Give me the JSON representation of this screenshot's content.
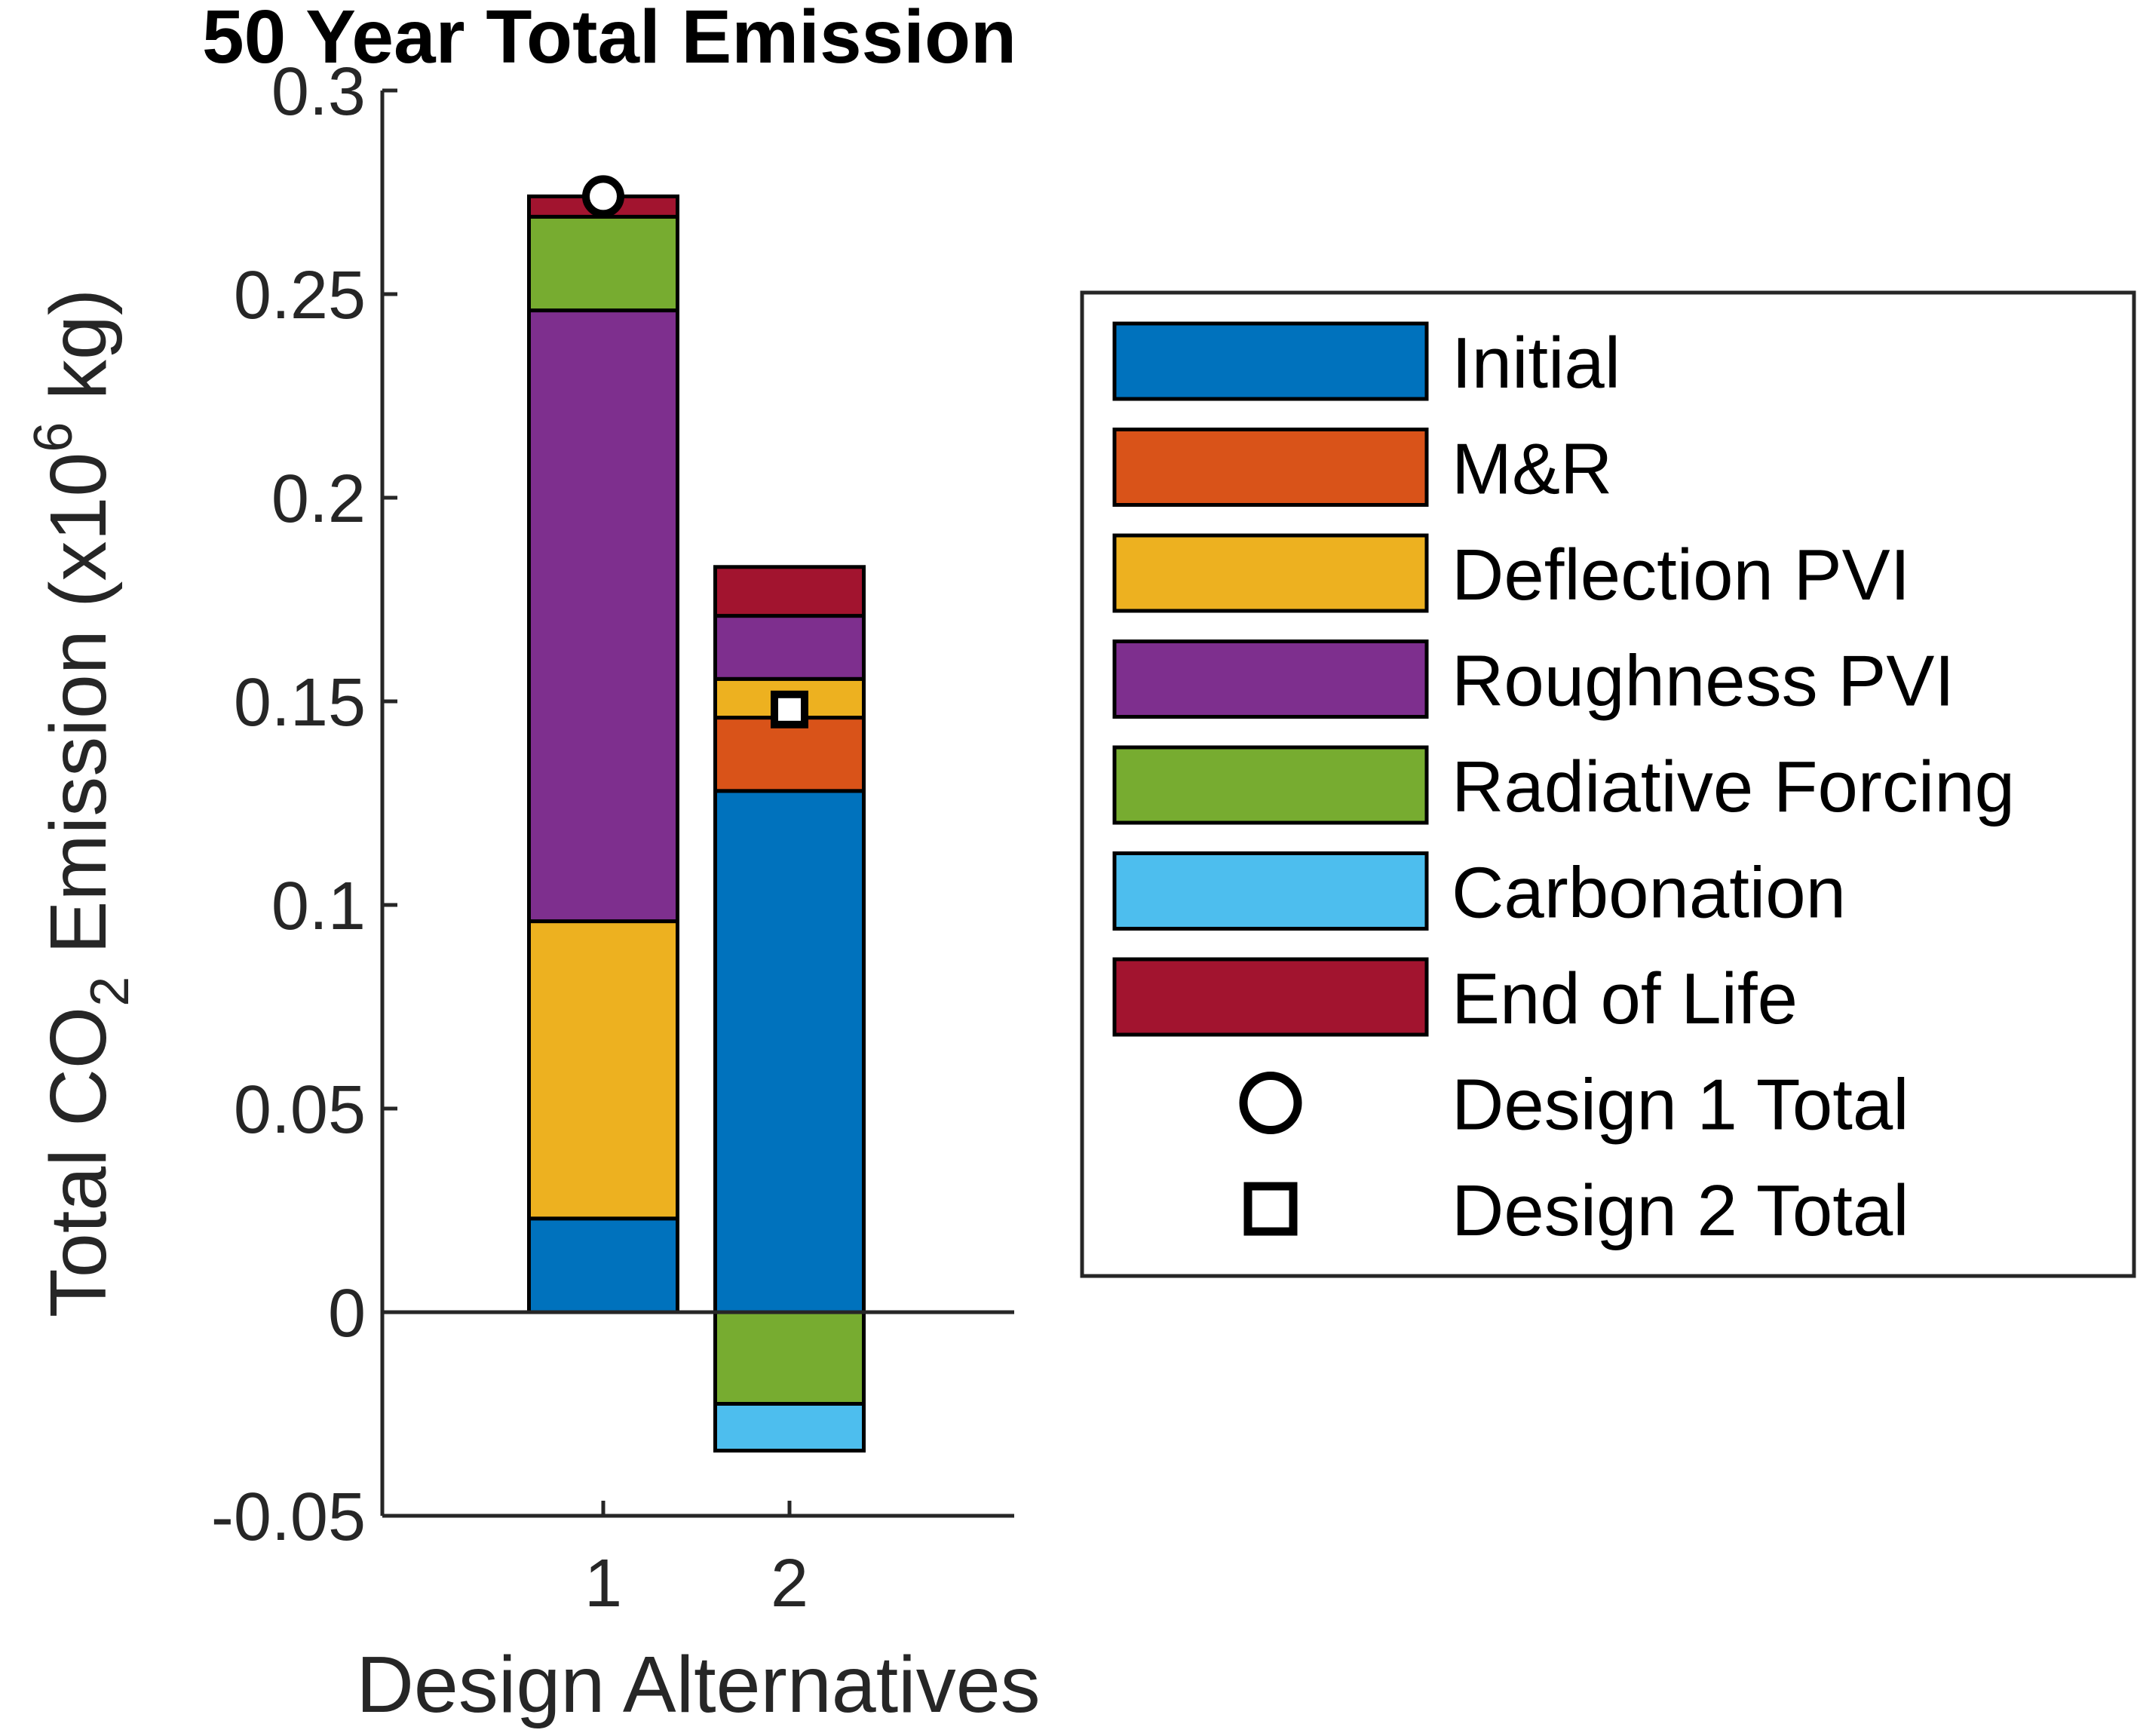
{
  "chart_data": {
    "type": "bar",
    "stacked": true,
    "title": "50 Year Total Emission",
    "xlabel": "Design Alternatives",
    "ylabel_parts": [
      "Total CO",
      "2",
      " Emission (x10",
      "6",
      " kg)"
    ],
    "categories": [
      "1",
      "2"
    ],
    "ylim": [
      -0.05,
      0.3
    ],
    "yticks": [
      -0.05,
      0,
      0.05,
      0.1,
      0.15,
      0.2,
      0.25,
      0.3
    ],
    "ytick_labels": [
      "-0.05",
      "0",
      "0.05",
      "0.1",
      "0.15",
      "0.2",
      "0.25",
      "0.3"
    ],
    "grid": false,
    "legend_position": "right",
    "series": [
      {
        "name": "Initial",
        "color": "#0072BD",
        "values": [
          0.023,
          0.128
        ]
      },
      {
        "name": "M&R",
        "color": "#D95319",
        "values": [
          0,
          0.018
        ]
      },
      {
        "name": "Deflection PVI",
        "color": "#EDB120",
        "values": [
          0.073,
          0.0095
        ]
      },
      {
        "name": "Roughness PVI",
        "color": "#7E2F8E",
        "values": [
          0.15,
          0.0155
        ]
      },
      {
        "name": "Radiative Forcing",
        "color": "#77AC30",
        "values": [
          0.023,
          -0.0225
        ]
      },
      {
        "name": "Carbonation",
        "color": "#4DBEEE",
        "values": [
          0,
          -0.0115
        ]
      },
      {
        "name": "End of Life",
        "color": "#A2142F",
        "values": [
          0.005,
          0.012
        ]
      }
    ],
    "totals": [
      {
        "name": "Design 1 Total",
        "marker": "circle",
        "category": "1",
        "value": 0.274
      },
      {
        "name": "Design 2 Total",
        "marker": "square",
        "category": "2",
        "value": 0.148
      }
    ]
  }
}
